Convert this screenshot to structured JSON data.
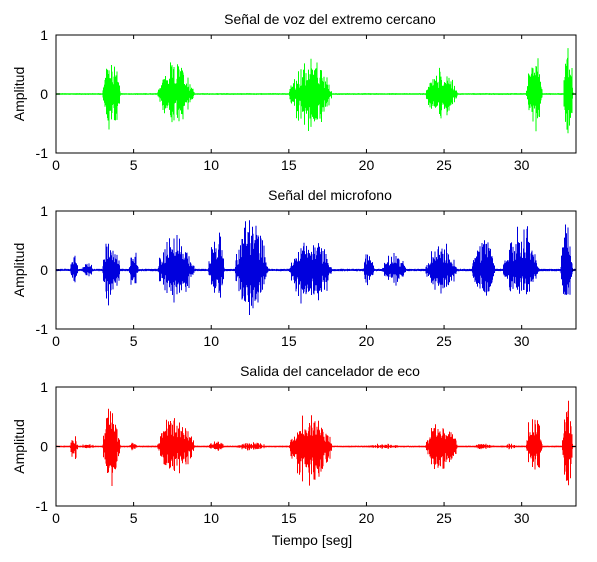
{
  "chart_data": [
    {
      "type": "line",
      "title": "Señal de voz del extremo cercano",
      "ylabel": "Amplitud",
      "xlabel": "",
      "xlim": [
        0,
        33.5
      ],
      "ylim": [
        -1,
        1
      ],
      "xticks": [
        0,
        5,
        10,
        15,
        20,
        25,
        30
      ],
      "yticks": [
        -1,
        0,
        1
      ],
      "grid": false,
      "color": "#00ff00",
      "series": [
        {
          "bursts": [
            {
              "start": 3.0,
              "end": 4.3,
              "peak": 0.78,
              "trough": -0.9
            },
            {
              "start": 6.5,
              "end": 9.3,
              "peak": 0.6,
              "trough": -0.65
            },
            {
              "start": 15.0,
              "end": 18.2,
              "peak": 0.65,
              "trough": -0.85
            },
            {
              "start": 23.8,
              "end": 26.2,
              "peak": 0.5,
              "trough": -0.6
            },
            {
              "start": 30.3,
              "end": 31.5,
              "peak": 0.82,
              "trough": -0.75
            },
            {
              "start": 32.7,
              "end": 33.4,
              "peak": 1.0,
              "trough": -1.0
            }
          ],
          "noise": 0.015
        }
      ]
    },
    {
      "type": "line",
      "title": "Señal del microfono",
      "ylabel": "Amplitud",
      "xlabel": "",
      "xlim": [
        0,
        33.5
      ],
      "ylim": [
        -1,
        1
      ],
      "xticks": [
        0,
        5,
        10,
        15,
        20,
        25,
        30
      ],
      "yticks": [
        -1,
        0,
        1
      ],
      "grid": false,
      "color": "#0000dd",
      "series": [
        {
          "bursts": [
            {
              "start": 0.9,
              "end": 1.5,
              "peak": 0.4,
              "trough": -0.35
            },
            {
              "start": 1.6,
              "end": 2.6,
              "peak": 0.15,
              "trough": -0.15
            },
            {
              "start": 3.0,
              "end": 4.3,
              "peak": 0.78,
              "trough": -0.9
            },
            {
              "start": 4.7,
              "end": 5.4,
              "peak": 0.4,
              "trough": -0.4
            },
            {
              "start": 6.5,
              "end": 9.3,
              "peak": 0.65,
              "trough": -0.7
            },
            {
              "start": 9.8,
              "end": 11.0,
              "peak": 0.85,
              "trough": -0.8
            },
            {
              "start": 11.5,
              "end": 14.0,
              "peak": 1.0,
              "trough": -1.0
            },
            {
              "start": 15.0,
              "end": 18.2,
              "peak": 0.65,
              "trough": -0.85
            },
            {
              "start": 19.8,
              "end": 20.6,
              "peak": 0.4,
              "trough": -0.35
            },
            {
              "start": 21.0,
              "end": 22.8,
              "peak": 0.35,
              "trough": -0.35
            },
            {
              "start": 23.8,
              "end": 26.2,
              "peak": 0.5,
              "trough": -0.6
            },
            {
              "start": 26.8,
              "end": 28.5,
              "peak": 0.7,
              "trough": -0.65
            },
            {
              "start": 28.8,
              "end": 31.5,
              "peak": 0.85,
              "trough": -0.7
            },
            {
              "start": 32.5,
              "end": 33.4,
              "peak": 1.0,
              "trough": -1.0
            }
          ],
          "noise": 0.02
        }
      ]
    },
    {
      "type": "line",
      "title": "Salida del cancelador de eco",
      "ylabel": "Amplitud",
      "xlabel": "Tiempo [seg]",
      "xlim": [
        0,
        33.5
      ],
      "ylim": [
        -1,
        1
      ],
      "xticks": [
        0,
        5,
        10,
        15,
        20,
        25,
        30
      ],
      "yticks": [
        -1,
        0,
        1
      ],
      "grid": false,
      "color": "#ff0000",
      "series": [
        {
          "bursts": [
            {
              "start": 0.9,
              "end": 1.5,
              "peak": 0.2,
              "trough": -0.35
            },
            {
              "start": 1.6,
              "end": 2.6,
              "peak": 0.08,
              "trough": -0.08
            },
            {
              "start": 3.0,
              "end": 4.3,
              "peak": 0.78,
              "trough": -0.9
            },
            {
              "start": 4.7,
              "end": 5.4,
              "peak": 0.1,
              "trough": -0.1
            },
            {
              "start": 6.5,
              "end": 9.3,
              "peak": 0.6,
              "trough": -0.65
            },
            {
              "start": 9.8,
              "end": 11.0,
              "peak": 0.12,
              "trough": -0.1
            },
            {
              "start": 11.5,
              "end": 14.0,
              "peak": 0.08,
              "trough": -0.08
            },
            {
              "start": 15.0,
              "end": 18.2,
              "peak": 0.65,
              "trough": -0.9
            },
            {
              "start": 19.8,
              "end": 22.8,
              "peak": 0.05,
              "trough": -0.05
            },
            {
              "start": 23.8,
              "end": 26.2,
              "peak": 0.5,
              "trough": -0.6
            },
            {
              "start": 26.8,
              "end": 28.5,
              "peak": 0.06,
              "trough": -0.06
            },
            {
              "start": 28.8,
              "end": 29.8,
              "peak": 0.06,
              "trough": -0.06
            },
            {
              "start": 30.3,
              "end": 31.5,
              "peak": 0.82,
              "trough": -0.75
            },
            {
              "start": 32.6,
              "end": 33.4,
              "peak": 0.92,
              "trough": -1.0
            }
          ],
          "noise": 0.015
        }
      ]
    }
  ]
}
